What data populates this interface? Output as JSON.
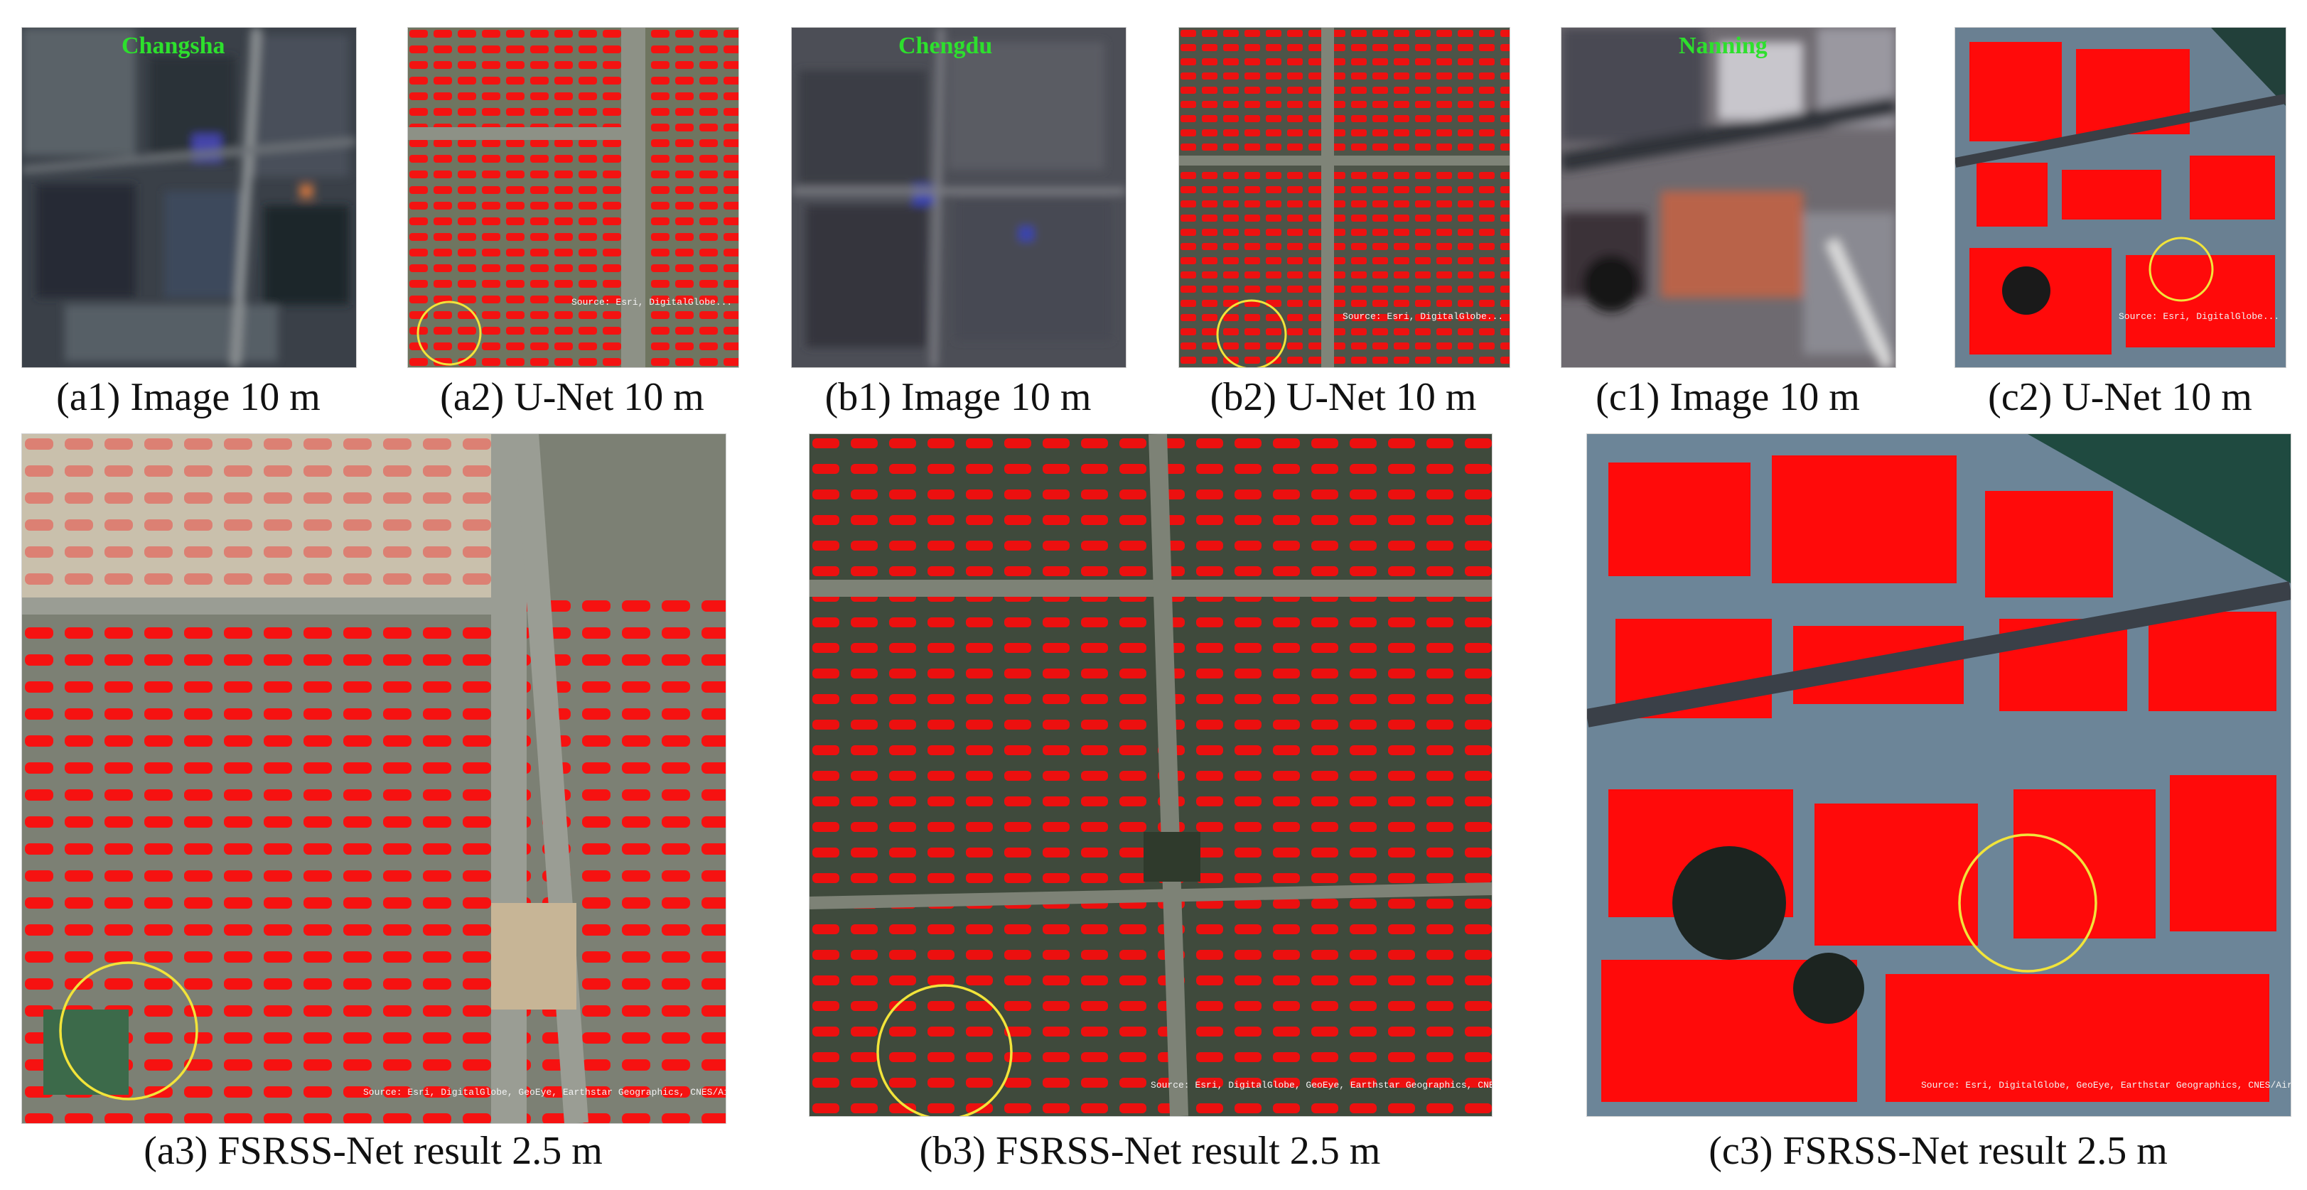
{
  "figure": {
    "top_row": [
      {
        "caption": "(a1) Image 10 m",
        "city": "Changsha"
      },
      {
        "caption": "(a2) U-Net 10 m"
      },
      {
        "caption": "(b1) Image 10 m",
        "city": "Chengdu"
      },
      {
        "caption": "(b2) U-Net 10 m"
      },
      {
        "caption": "(c1) Image 10 m",
        "city": "Nanning"
      },
      {
        "caption": "(c2) U-Net 10 m"
      }
    ],
    "bottom_row": [
      {
        "caption": "(a3) FSRSS-Net result 2.5 m"
      },
      {
        "caption": "(b3) FSRSS-Net result 2.5 m"
      },
      {
        "caption": "(c3) FSRSS-Net result 2.5 m"
      }
    ],
    "attribution": "Source: Esri, DigitalGlobe, GeoEye, Earthstar Geographics, CNES/Airbus DS, USDA, USGS, AeroGRID, IGN, and the GIS User Community"
  },
  "colors": {
    "building_mask": "#ff0a0a",
    "highlight_circle": "#f2e43a",
    "city_label": "#2de02d"
  }
}
